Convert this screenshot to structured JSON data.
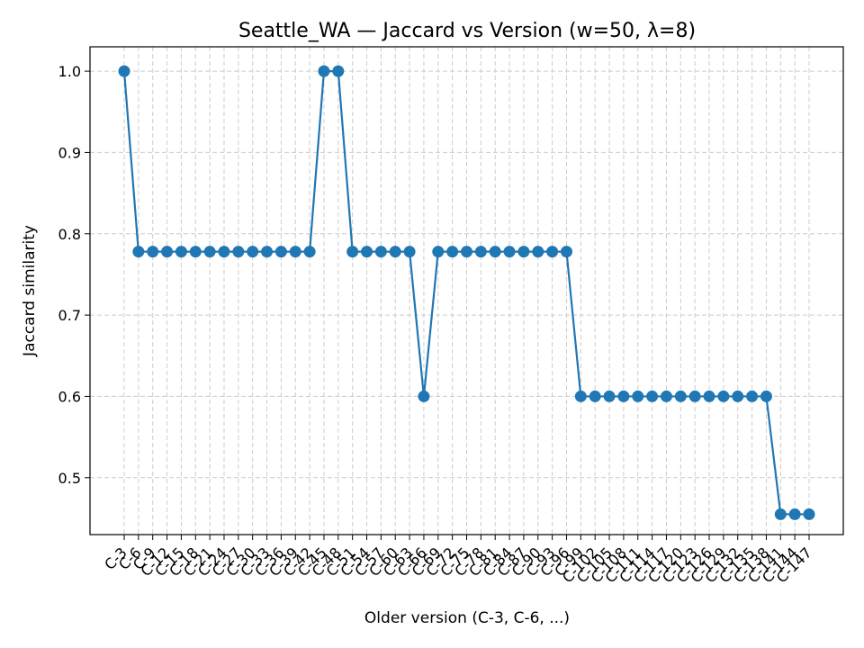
{
  "chart_data": {
    "type": "line",
    "title": "Seattle_WA — Jaccard vs Version (w=50, λ=8)",
    "xlabel": "Older version (C-3, C-6, ...)",
    "ylabel": "Jaccard similarity",
    "ylim": [
      0.43,
      1.03
    ],
    "yticks": [
      "0.5",
      "0.6",
      "0.7",
      "0.8",
      "0.9",
      "1.0"
    ],
    "grid": true,
    "series_color": "#1f77b4",
    "grid_color": "#cccccc",
    "categories": [
      "C-3",
      "C-6",
      "C-9",
      "C-12",
      "C-15",
      "C-18",
      "C-21",
      "C-24",
      "C-27",
      "C-30",
      "C-33",
      "C-36",
      "C-39",
      "C-42",
      "C-45",
      "C-48",
      "C-51",
      "C-54",
      "C-57",
      "C-60",
      "C-63",
      "C-66",
      "C-69",
      "C-72",
      "C-75",
      "C-78",
      "C-81",
      "C-84",
      "C-87",
      "C-90",
      "C-93",
      "C-96",
      "C-99",
      "C-102",
      "C-105",
      "C-108",
      "C-111",
      "C-114",
      "C-117",
      "C-120",
      "C-123",
      "C-126",
      "C-129",
      "C-132",
      "C-135",
      "C-138",
      "C-141",
      "C-144",
      "C-147"
    ],
    "values": [
      1.0,
      0.778,
      0.778,
      0.778,
      0.778,
      0.778,
      0.778,
      0.778,
      0.778,
      0.778,
      0.778,
      0.778,
      0.778,
      0.778,
      1.0,
      1.0,
      0.778,
      0.778,
      0.778,
      0.778,
      0.778,
      0.6,
      0.778,
      0.778,
      0.778,
      0.778,
      0.778,
      0.778,
      0.778,
      0.778,
      0.778,
      0.778,
      0.6,
      0.6,
      0.6,
      0.6,
      0.6,
      0.6,
      0.6,
      0.6,
      0.6,
      0.6,
      0.6,
      0.6,
      0.6,
      0.6,
      0.455,
      0.455,
      0.455
    ]
  }
}
